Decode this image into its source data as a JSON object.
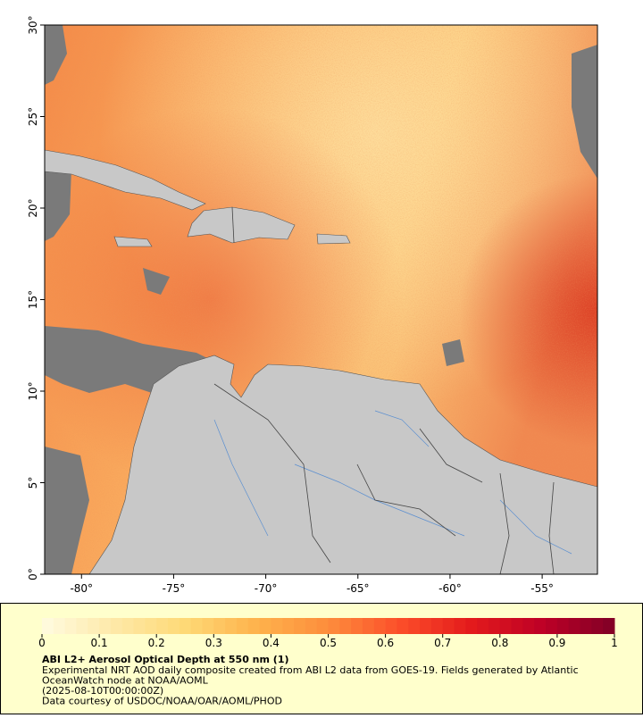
{
  "map": {
    "xlim": [
      -82,
      -52
    ],
    "ylim": [
      0,
      30
    ],
    "xticks": [
      {
        "value": -80,
        "label": "-80°"
      },
      {
        "value": -75,
        "label": "-75°"
      },
      {
        "value": -70,
        "label": "-70°"
      },
      {
        "value": -65,
        "label": "-65°"
      },
      {
        "value": -60,
        "label": "-60°"
      },
      {
        "value": -55,
        "label": "-55°"
      }
    ],
    "yticks": [
      {
        "value": 0,
        "label": "0°"
      },
      {
        "value": 5,
        "label": "5°"
      },
      {
        "value": 10,
        "label": "10°"
      },
      {
        "value": 15,
        "label": "15°"
      },
      {
        "value": 20,
        "label": "20°"
      },
      {
        "value": 25,
        "label": "25°"
      },
      {
        "value": 30,
        "label": "30°"
      }
    ],
    "colorbar": {
      "lim": [
        0,
        1
      ],
      "ticks": [
        0,
        0.1,
        0.2,
        0.3,
        0.4,
        0.5,
        0.6,
        0.7,
        0.8,
        0.9,
        1
      ],
      "colors": [
        "#fffbe0",
        "#fee9a8",
        "#fed976",
        "#feb24c",
        "#fd8d3c",
        "#fc4e2a",
        "#e31a1c",
        "#bd0026",
        "#800026"
      ]
    },
    "caption": {
      "title": "ABI L2+ Aerosol Optical Depth at 550 nm (1)",
      "lines": [
        "Experimental NRT AOD daily composite created from ABI L2 data from GOES-19. Fields generated by Atlantic",
        "OceanWatch node at NOAA/AOML",
        "(2025-08-10T00:00:00Z)",
        "Data courtesy of USDOC/NOAA/OAR/AOML/PHOD"
      ]
    }
  }
}
